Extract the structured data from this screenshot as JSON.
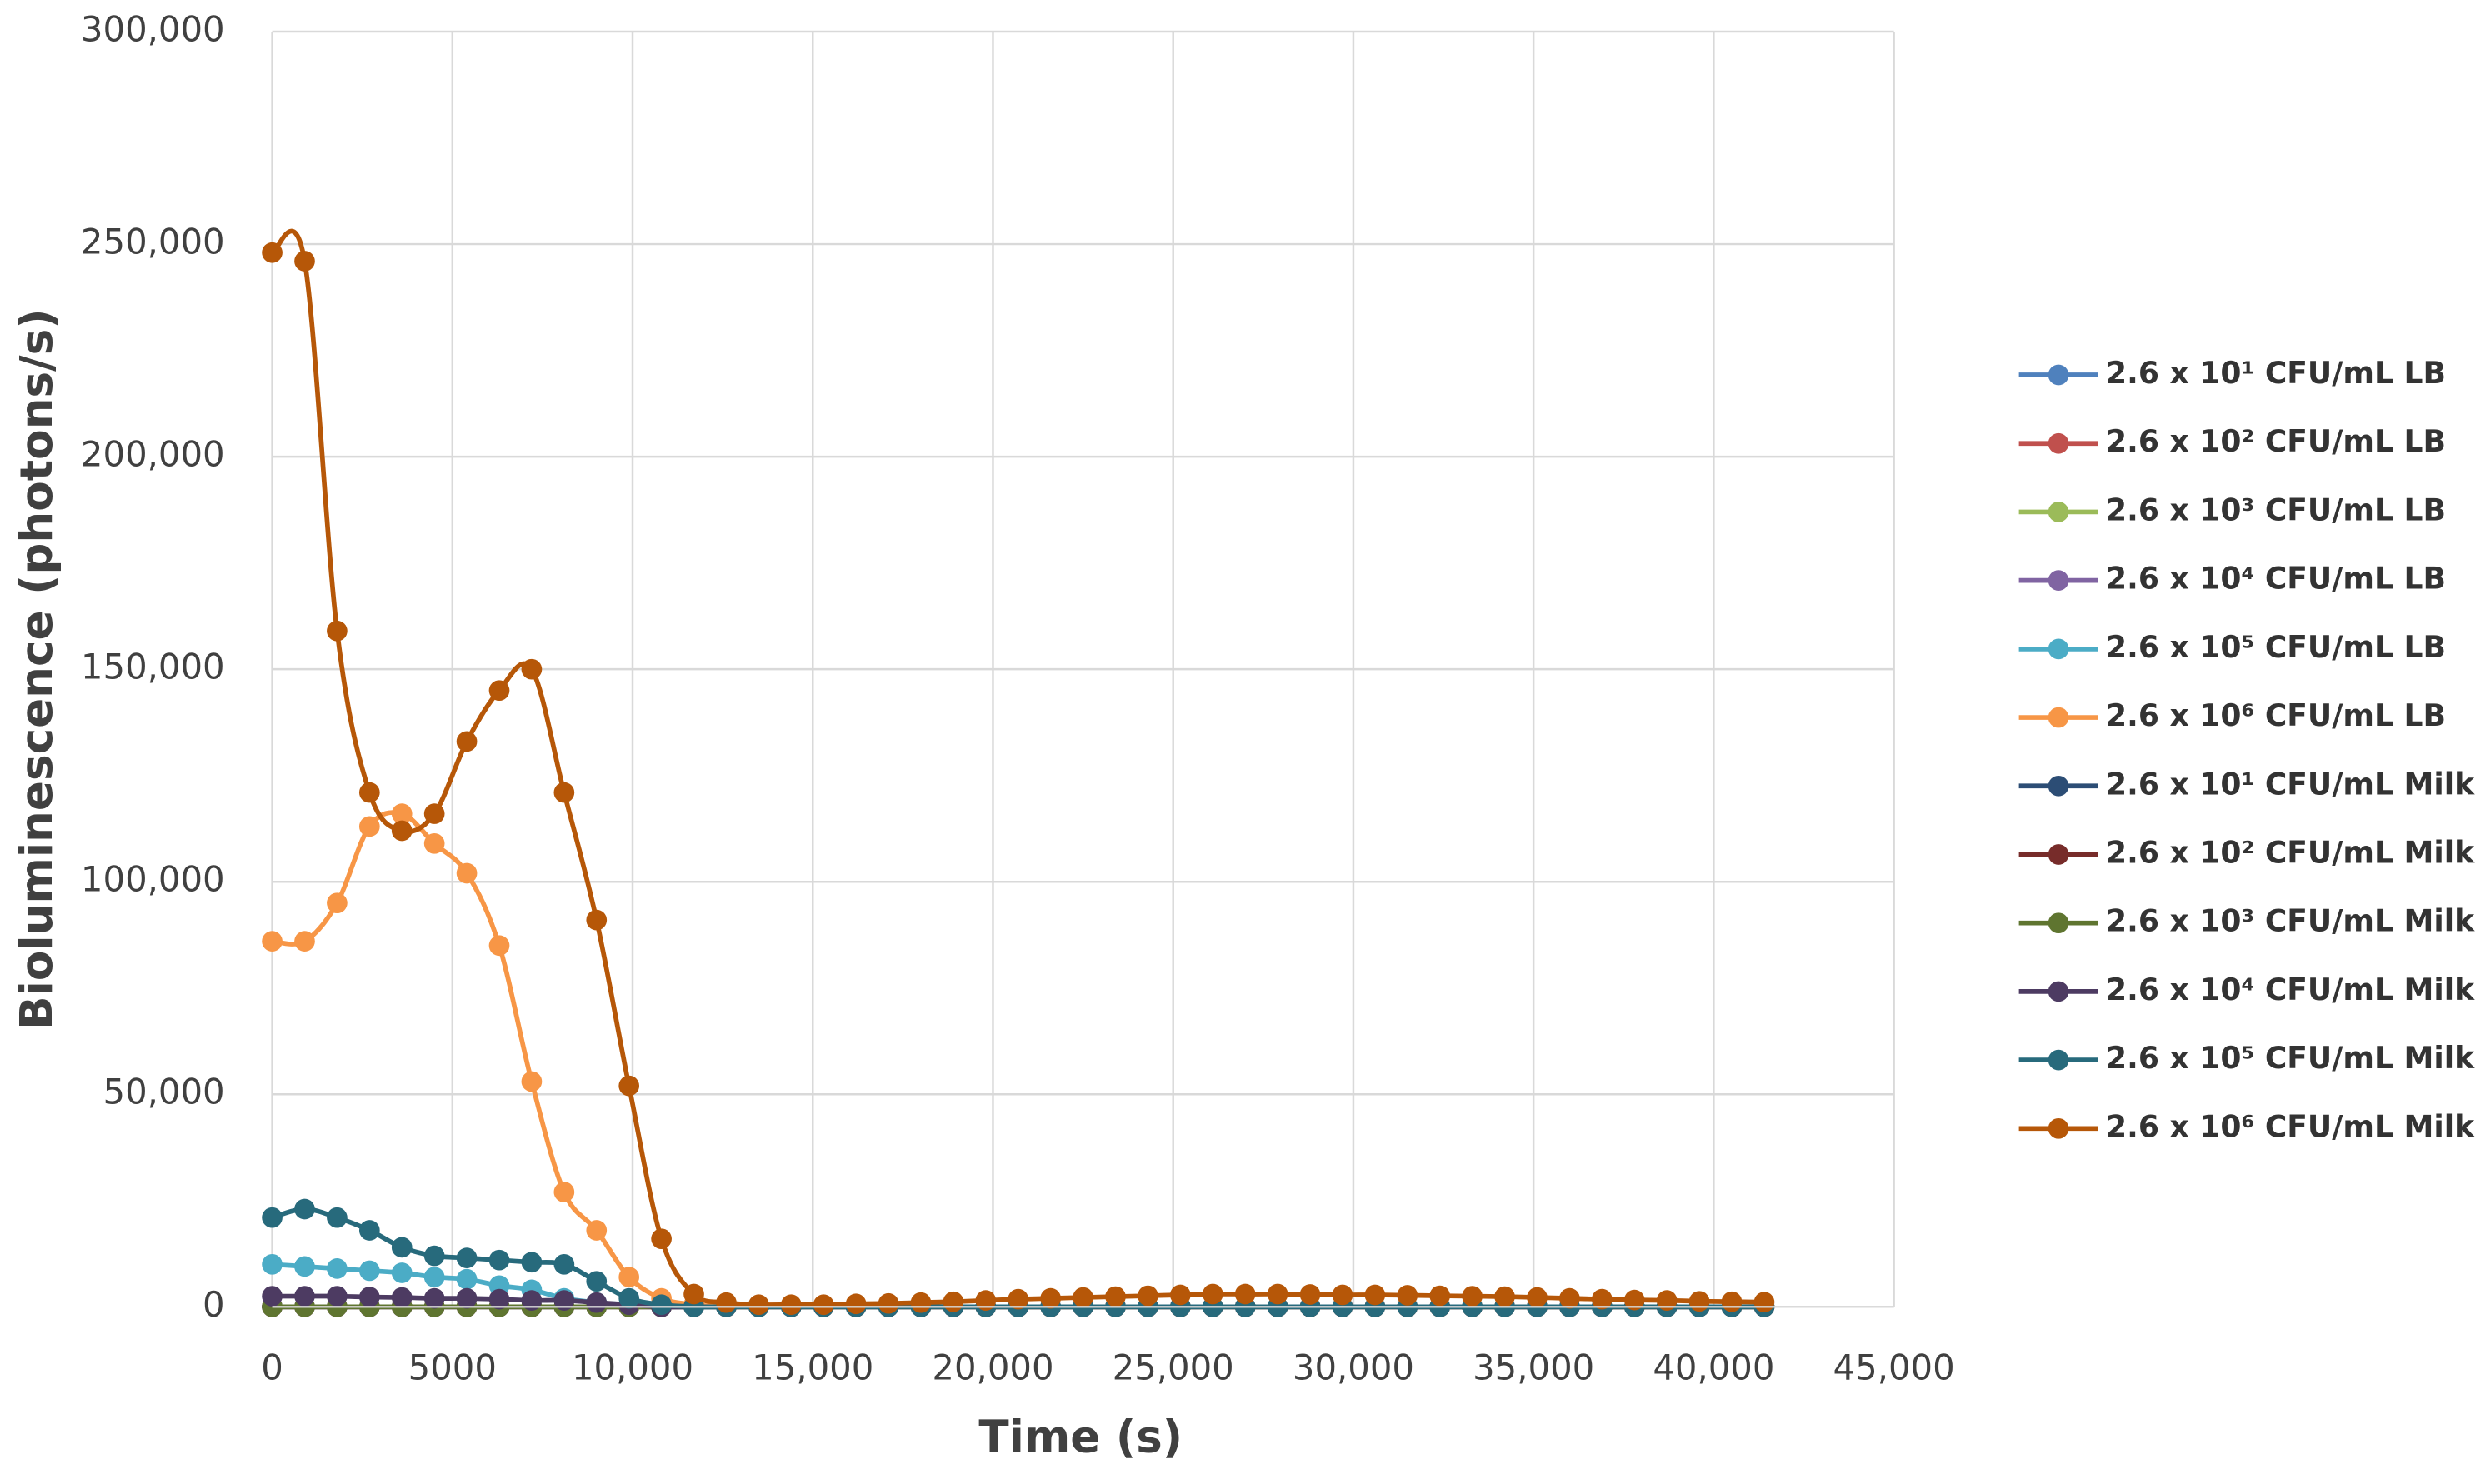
{
  "chart_data": {
    "type": "line",
    "xlabel": "Time (s)",
    "ylabel": "Bioluminescence (photons/s)",
    "xlim": [
      0,
      45000
    ],
    "ylim": [
      0,
      300000
    ],
    "xticks": [
      0,
      5000,
      {
        "value": 10000,
        "label": "10,000"
      },
      {
        "value": 15000,
        "label": "15,000"
      },
      {
        "value": 20000,
        "label": "20,000"
      },
      {
        "value": 25000,
        "label": "25,000"
      },
      {
        "value": 30000,
        "label": "30,000"
      },
      {
        "value": 35000,
        "label": "35,000"
      },
      {
        "value": 40000,
        "label": "40,000"
      },
      {
        "value": 45000,
        "label": "45,000"
      }
    ],
    "yticks": [
      0,
      {
        "value": 50000,
        "label": "50,000"
      },
      {
        "value": 100000,
        "label": "100,000"
      },
      {
        "value": 150000,
        "label": "150,000"
      },
      {
        "value": 200000,
        "label": "200,000"
      },
      {
        "value": 250000,
        "label": "250,000"
      },
      {
        "value": 300000,
        "label": "300,000"
      }
    ],
    "grid": true,
    "legend": "right",
    "x": [
      0,
      900,
      1800,
      2700,
      3600,
      4500,
      5400,
      6300,
      7200,
      8100,
      9000,
      9900,
      10800,
      11700,
      12600,
      13500,
      14400,
      15300,
      16200,
      17100,
      18000,
      18900,
      19800,
      20700,
      21600,
      22500,
      23400,
      24300,
      25200,
      26100,
      27000,
      27900,
      28800,
      29700,
      30600,
      31500,
      32400,
      33300,
      34200,
      35100,
      36000,
      36900,
      37800,
      38700,
      39600,
      40500,
      41400
    ],
    "series": [
      {
        "name": "2.6 x 10¹ CFU/mL LB",
        "color": "#4f81bd",
        "values": [
          0,
          0,
          0,
          0,
          0,
          0,
          0,
          0,
          0,
          0,
          0,
          0,
          0,
          0,
          0,
          0,
          0,
          0,
          0,
          0,
          0,
          0,
          0,
          0,
          0,
          0,
          0,
          0,
          0,
          0,
          0,
          0,
          0,
          0,
          0,
          0,
          0,
          0,
          0,
          0,
          0,
          0,
          0,
          0,
          0,
          0,
          0
        ]
      },
      {
        "name": "2.6 x 10² CFU/mL LB",
        "color": "#c0504d",
        "values": [
          0,
          0,
          0,
          0,
          0,
          0,
          0,
          0,
          0,
          0,
          0,
          0,
          0,
          0,
          0,
          0,
          0,
          0,
          0,
          0,
          0,
          0,
          0,
          0,
          0,
          0,
          0,
          0,
          0,
          0,
          0,
          0,
          0,
          0,
          0,
          0,
          0,
          0,
          0,
          0,
          0,
          0,
          0,
          0,
          0,
          0,
          0
        ]
      },
      {
        "name": "2.6 x 10³ CFU/mL LB",
        "color": "#9bbb59",
        "values": [
          0,
          0,
          0,
          0,
          0,
          0,
          0,
          0,
          0,
          0,
          0,
          0,
          0,
          0,
          0,
          0,
          0,
          0,
          0,
          0,
          0,
          0,
          0,
          0,
          0,
          0,
          0,
          0,
          0,
          0,
          0,
          0,
          0,
          0,
          0,
          0,
          0,
          0,
          0,
          0,
          0,
          0,
          0,
          0,
          0,
          0,
          0
        ]
      },
      {
        "name": "2.6 x 10⁴ CFU/mL LB",
        "color": "#8064a2",
        "values": [
          0,
          0,
          0,
          0,
          0,
          0,
          0,
          0,
          0,
          0,
          0,
          0,
          0,
          0,
          0,
          0,
          0,
          0,
          0,
          0,
          0,
          0,
          0,
          0,
          0,
          0,
          0,
          0,
          0,
          0,
          0,
          0,
          0,
          0,
          0,
          0,
          0,
          0,
          0,
          0,
          0,
          0,
          0,
          0,
          0,
          0,
          0
        ]
      },
      {
        "name": "2.6 x 10⁵ CFU/mL LB",
        "color": "#4bacc6",
        "values": [
          10000,
          9500,
          9000,
          8500,
          8000,
          7000,
          6500,
          5000,
          4000,
          2000,
          1000,
          500,
          0,
          0,
          0,
          0,
          0,
          0,
          0,
          0,
          0,
          0,
          0,
          0,
          0,
          0,
          0,
          0,
          0,
          0,
          0,
          0,
          0,
          0,
          0,
          0,
          0,
          0,
          0,
          0,
          0,
          0,
          0,
          0,
          0,
          0,
          0
        ]
      },
      {
        "name": "2.6 x 10⁶ CFU/mL LB",
        "color": "#f79646",
        "values": [
          86000,
          86000,
          95000,
          113000,
          116000,
          109000,
          102000,
          85000,
          53000,
          27000,
          18000,
          7000,
          2000,
          500,
          0,
          0,
          0,
          0,
          0,
          0,
          0,
          0,
          0,
          0,
          0,
          0,
          0,
          0,
          0,
          0,
          0,
          0,
          0,
          0,
          0,
          0,
          0,
          0,
          0,
          0,
          0,
          0,
          0,
          0,
          0,
          0,
          0
        ]
      },
      {
        "name": "2.6 x 10¹ CFU/mL Milk",
        "color": "#2c4d75",
        "values": [
          0,
          0,
          0,
          0,
          0,
          0,
          0,
          0,
          0,
          0,
          0,
          0,
          0,
          0,
          0,
          0,
          0,
          0,
          0,
          0,
          0,
          0,
          0,
          0,
          0,
          0,
          0,
          0,
          0,
          0,
          0,
          0,
          0,
          0,
          0,
          0,
          0,
          0,
          0,
          0,
          0,
          0,
          0,
          0,
          0,
          0,
          0
        ]
      },
      {
        "name": "2.6 x 10² CFU/mL Milk",
        "color": "#772c2a",
        "values": [
          0,
          0,
          0,
          0,
          0,
          0,
          0,
          0,
          0,
          0,
          0,
          0,
          0,
          0,
          0,
          0,
          0,
          0,
          0,
          0,
          0,
          0,
          0,
          0,
          0,
          0,
          0,
          0,
          0,
          0,
          0,
          0,
          0,
          0,
          0,
          0,
          0,
          0,
          0,
          0,
          0,
          0,
          0,
          0,
          0,
          0,
          0
        ]
      },
      {
        "name": "2.6 x 10³ CFU/mL Milk",
        "color": "#5f7530",
        "values": [
          0,
          0,
          0,
          0,
          0,
          0,
          0,
          0,
          0,
          0,
          0,
          0,
          0,
          0,
          0,
          0,
          0,
          0,
          0,
          0,
          0,
          0,
          0,
          0,
          0,
          0,
          0,
          0,
          0,
          0,
          0,
          0,
          0,
          0,
          0,
          0,
          0,
          0,
          0,
          0,
          0,
          0,
          0,
          0,
          0,
          0,
          0
        ]
      },
      {
        "name": "2.6 x 10⁴ CFU/mL Milk",
        "color": "#4d3b62",
        "values": [
          2500,
          2500,
          2500,
          2300,
          2200,
          2000,
          2000,
          1800,
          1500,
          1500,
          1000,
          500,
          0,
          0,
          0,
          0,
          0,
          0,
          0,
          0,
          0,
          0,
          0,
          0,
          0,
          0,
          0,
          0,
          0,
          0,
          0,
          0,
          0,
          0,
          0,
          0,
          0,
          0,
          0,
          0,
          0,
          0,
          0,
          0,
          0,
          0,
          0
        ]
      },
      {
        "name": "2.6 x 10⁵ CFU/mL Milk",
        "color": "#276a7c",
        "values": [
          21000,
          23000,
          21000,
          18000,
          14000,
          12000,
          11500,
          11000,
          10500,
          10000,
          6000,
          2000,
          500,
          0,
          0,
          0,
          0,
          0,
          0,
          0,
          0,
          0,
          0,
          0,
          0,
          0,
          0,
          0,
          0,
          0,
          0,
          0,
          0,
          0,
          0,
          0,
          0,
          0,
          0,
          0,
          0,
          0,
          0,
          0,
          0,
          0,
          0
        ]
      },
      {
        "name": "2.6 x 10⁶ CFU/mL Milk",
        "color": "#b65708",
        "values": [
          248000,
          246000,
          159000,
          121000,
          112000,
          116000,
          133000,
          145000,
          150000,
          121000,
          91000,
          52000,
          16000,
          3000,
          1000,
          500,
          500,
          500,
          700,
          800,
          1000,
          1200,
          1500,
          1800,
          2000,
          2200,
          2400,
          2600,
          2800,
          3000,
          3000,
          3000,
          2900,
          2800,
          2800,
          2700,
          2600,
          2500,
          2400,
          2200,
          2000,
          1800,
          1600,
          1500,
          1300,
          1200,
          1100
        ]
      }
    ]
  }
}
